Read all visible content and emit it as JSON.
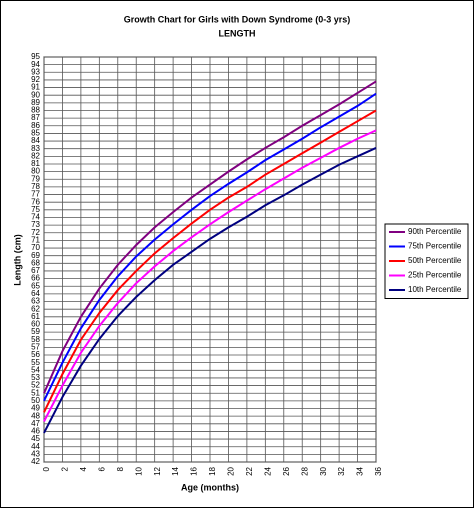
{
  "chart_data": {
    "type": "line",
    "title": "Growth Chart for Girls with Down Syndrome (0-3 yrs)",
    "subtitle": "LENGTH",
    "x_label": "Age (months)",
    "y_label": "Length (cm)",
    "x": [
      0,
      2,
      4,
      6,
      8,
      10,
      12,
      14,
      16,
      18,
      20,
      22,
      24,
      26,
      28,
      30,
      32,
      34,
      36
    ],
    "series": [
      {
        "name": "90th Percentile",
        "color": "#800080",
        "values": [
          51,
          56.5,
          61,
          64.7,
          67.8,
          70.4,
          72.7,
          74.7,
          76.6,
          78.3,
          80,
          81.6,
          83.1,
          84.5,
          86,
          87.4,
          88.8,
          90.3,
          91.8
        ]
      },
      {
        "name": "75th Percentile",
        "color": "#0000ff",
        "values": [
          50,
          55,
          59.5,
          63.2,
          66.3,
          68.9,
          71.1,
          73.1,
          75,
          76.8,
          78.4,
          79.9,
          81.5,
          82.9,
          84.3,
          85.8,
          87.2,
          88.6,
          90.2
        ]
      },
      {
        "name": "50th Percentile",
        "color": "#ff0000",
        "values": [
          48.5,
          53.5,
          58,
          61.5,
          64.5,
          67,
          69.3,
          71.3,
          73.2,
          75,
          76.6,
          78,
          79.6,
          81,
          82.4,
          83.8,
          85.2,
          86.6,
          88
        ]
      },
      {
        "name": "25th Percentile",
        "color": "#ff00ff",
        "values": [
          47.3,
          52,
          56.3,
          59.8,
          62.8,
          65.4,
          67.6,
          69.6,
          71.4,
          73.1,
          74.7,
          76.2,
          77.7,
          79.1,
          80.5,
          81.8,
          83.1,
          84.3,
          85.4
        ]
      },
      {
        "name": "10th Percentile",
        "color": "#000080",
        "values": [
          45.8,
          50.5,
          54.6,
          58.1,
          61.1,
          63.6,
          65.8,
          67.8,
          69.5,
          71.2,
          72.7,
          74.1,
          75.6,
          76.9,
          78.3,
          79.6,
          80.9,
          82,
          83.1
        ]
      }
    ],
    "xlim": [
      0,
      36
    ],
    "xticks": [
      0,
      2,
      4,
      6,
      8,
      10,
      12,
      14,
      16,
      18,
      20,
      22,
      24,
      26,
      28,
      30,
      32,
      34,
      36
    ],
    "ylim": [
      42,
      95
    ],
    "yticks": [
      42,
      43,
      44,
      45,
      46,
      47,
      48,
      49,
      50,
      51,
      52,
      53,
      54,
      55,
      56,
      57,
      58,
      59,
      60,
      61,
      62,
      63,
      64,
      65,
      66,
      67,
      68,
      69,
      70,
      71,
      72,
      73,
      74,
      75,
      76,
      77,
      78,
      79,
      80,
      81,
      82,
      83,
      84,
      85,
      86,
      87,
      88,
      89,
      90,
      91,
      92,
      93,
      94,
      95
    ],
    "grid": true,
    "legend": "right"
  }
}
